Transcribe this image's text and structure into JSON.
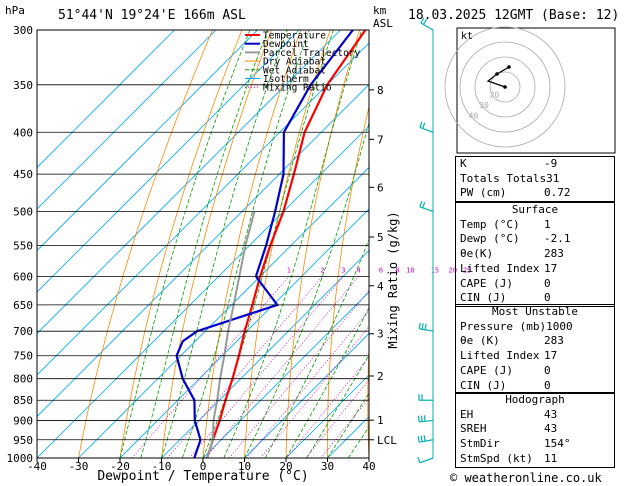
{
  "header": {
    "hpa_label": "hPa",
    "location": "51°44'N 19°24'E 166m ASL",
    "km_label": "km",
    "asl_label": "ASL",
    "date": "18.03.2025 12GMT (Base: 12)"
  },
  "footer": {
    "credit": "© weatheronline.co.uk"
  },
  "colors": {
    "temperature": "#ff0000",
    "dewpoint": "#0000cc",
    "parcel": "#999999",
    "dry_adiabat": "#ff8800",
    "wet_adiabat": "#00a000",
    "isotherm": "#00a8ff",
    "mixing_ratio": "#cc00cc",
    "wind": "#00b0b0"
  },
  "chart_data": {
    "type": "line",
    "chart_kind": "skew-T log-P diagram",
    "xlabel": "Dewpoint / Temperature (°C)",
    "ylabel": "Mixing Ratio (g/kg)",
    "x_ticks": [
      -40,
      -30,
      -20,
      -10,
      0,
      10,
      20,
      30,
      40
    ],
    "pressure_levels": [
      300,
      350,
      400,
      450,
      500,
      550,
      600,
      650,
      700,
      750,
      800,
      850,
      900,
      950,
      1000
    ],
    "y_scale": "log",
    "xlim": [
      -40,
      40
    ],
    "ylim": [
      1000,
      300
    ],
    "km_ticks": [
      {
        "km": "8",
        "p": 355
      },
      {
        "km": "7",
        "p": 408
      },
      {
        "km": "6",
        "p": 467
      },
      {
        "km": "5",
        "p": 537
      },
      {
        "km": "4",
        "p": 616
      },
      {
        "km": "3",
        "p": 705
      },
      {
        "km": "2",
        "p": 794
      },
      {
        "km": "1",
        "p": 899
      },
      {
        "km": "LCL",
        "p": 950
      }
    ],
    "mixing_ratio_labels": [
      "1",
      "2",
      "3",
      "4",
      "6",
      "8",
      "10",
      "15",
      "20",
      "25"
    ],
    "legend": [
      "Temperature",
      "Dewpoint",
      "Parcel Trajectory",
      "Dry Adiabat",
      "Wet Adiabat",
      "Isotherm",
      "Mixing Ratio"
    ],
    "legend_position": "top-right",
    "series": [
      {
        "name": "Temperature",
        "points": [
          [
            1000,
            1
          ],
          [
            950,
            -2
          ],
          [
            900,
            -5
          ],
          [
            850,
            -8.5
          ],
          [
            800,
            -12
          ],
          [
            750,
            -16
          ],
          [
            700,
            -20.5
          ],
          [
            650,
            -25
          ],
          [
            600,
            -30
          ],
          [
            550,
            -35
          ],
          [
            500,
            -40
          ],
          [
            450,
            -46.5
          ],
          [
            400,
            -54
          ],
          [
            350,
            -60
          ],
          [
            300,
            -64
          ]
        ]
      },
      {
        "name": "Dewpoint",
        "points": [
          [
            1000,
            -2.1
          ],
          [
            950,
            -5
          ],
          [
            900,
            -11
          ],
          [
            850,
            -16
          ],
          [
            800,
            -24
          ],
          [
            750,
            -31
          ],
          [
            720,
            -33
          ],
          [
            700,
            -32
          ],
          [
            650,
            -19
          ],
          [
            600,
            -31
          ],
          [
            550,
            -36
          ],
          [
            500,
            -42
          ],
          [
            450,
            -49
          ],
          [
            400,
            -59
          ],
          [
            350,
            -64
          ],
          [
            300,
            -67
          ]
        ]
      },
      {
        "name": "Parcel Trajectory",
        "points": [
          [
            1000,
            1
          ],
          [
            950,
            -2
          ],
          [
            900,
            -6.5
          ],
          [
            850,
            -10.5
          ],
          [
            800,
            -15
          ],
          [
            750,
            -19.5
          ],
          [
            700,
            -24.5
          ],
          [
            650,
            -29.5
          ],
          [
            600,
            -35
          ],
          [
            550,
            -41
          ],
          [
            500,
            -47
          ]
        ]
      }
    ],
    "winds": [
      {
        "p": 1000,
        "dir": 250,
        "kt": 10
      },
      {
        "p": 950,
        "dir": 260,
        "kt": 25
      },
      {
        "p": 900,
        "dir": 265,
        "kt": 25
      },
      {
        "p": 850,
        "dir": 270,
        "kt": 20
      },
      {
        "p": 700,
        "dir": 280,
        "kt": 25
      },
      {
        "p": 500,
        "dir": 290,
        "kt": 20
      },
      {
        "p": 400,
        "dir": 290,
        "kt": 15
      },
      {
        "p": 300,
        "dir": 300,
        "kt": 15
      }
    ]
  },
  "hodograph": {
    "label": "kt",
    "ring_labels": [
      "40",
      "30",
      "20"
    ]
  },
  "indices": {
    "rows": [
      {
        "label": "K",
        "value": "-9"
      },
      {
        "label": "Totals Totals",
        "value": "31"
      },
      {
        "label": "PW (cm)",
        "value": "0.72"
      }
    ]
  },
  "surface": {
    "title": "Surface",
    "rows": [
      {
        "label": "Temp (°C)",
        "value": "1"
      },
      {
        "label": "Dewp (°C)",
        "value": "-2.1"
      },
      {
        "label": "θe(K)",
        "value": "283"
      },
      {
        "label": "Lifted Index",
        "value": "17"
      },
      {
        "label": "CAPE (J)",
        "value": "0"
      },
      {
        "label": "CIN (J)",
        "value": "0"
      }
    ]
  },
  "most_unstable": {
    "title": "Most Unstable",
    "rows": [
      {
        "label": "Pressure (mb)",
        "value": "1000"
      },
      {
        "label": "θe (K)",
        "value": "283"
      },
      {
        "label": "Lifted Index",
        "value": "17"
      },
      {
        "label": "CAPE (J)",
        "value": "0"
      },
      {
        "label": "CIN (J)",
        "value": "0"
      }
    ]
  },
  "hodograph_table": {
    "title": "Hodograph",
    "rows": [
      {
        "label": "EH",
        "value": "43"
      },
      {
        "label": "SREH",
        "value": "43"
      },
      {
        "label": "StmDir",
        "value": "154°"
      },
      {
        "label": "StmSpd (kt)",
        "value": "11"
      }
    ]
  }
}
